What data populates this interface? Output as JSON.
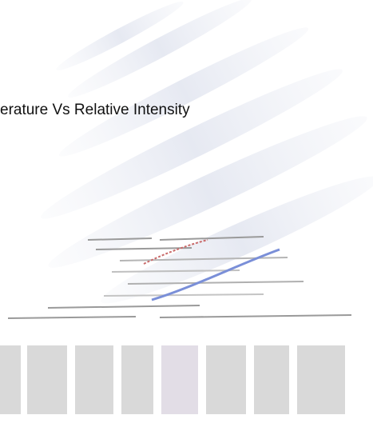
{
  "caption": "erature Vs Relative Intensity"
}
